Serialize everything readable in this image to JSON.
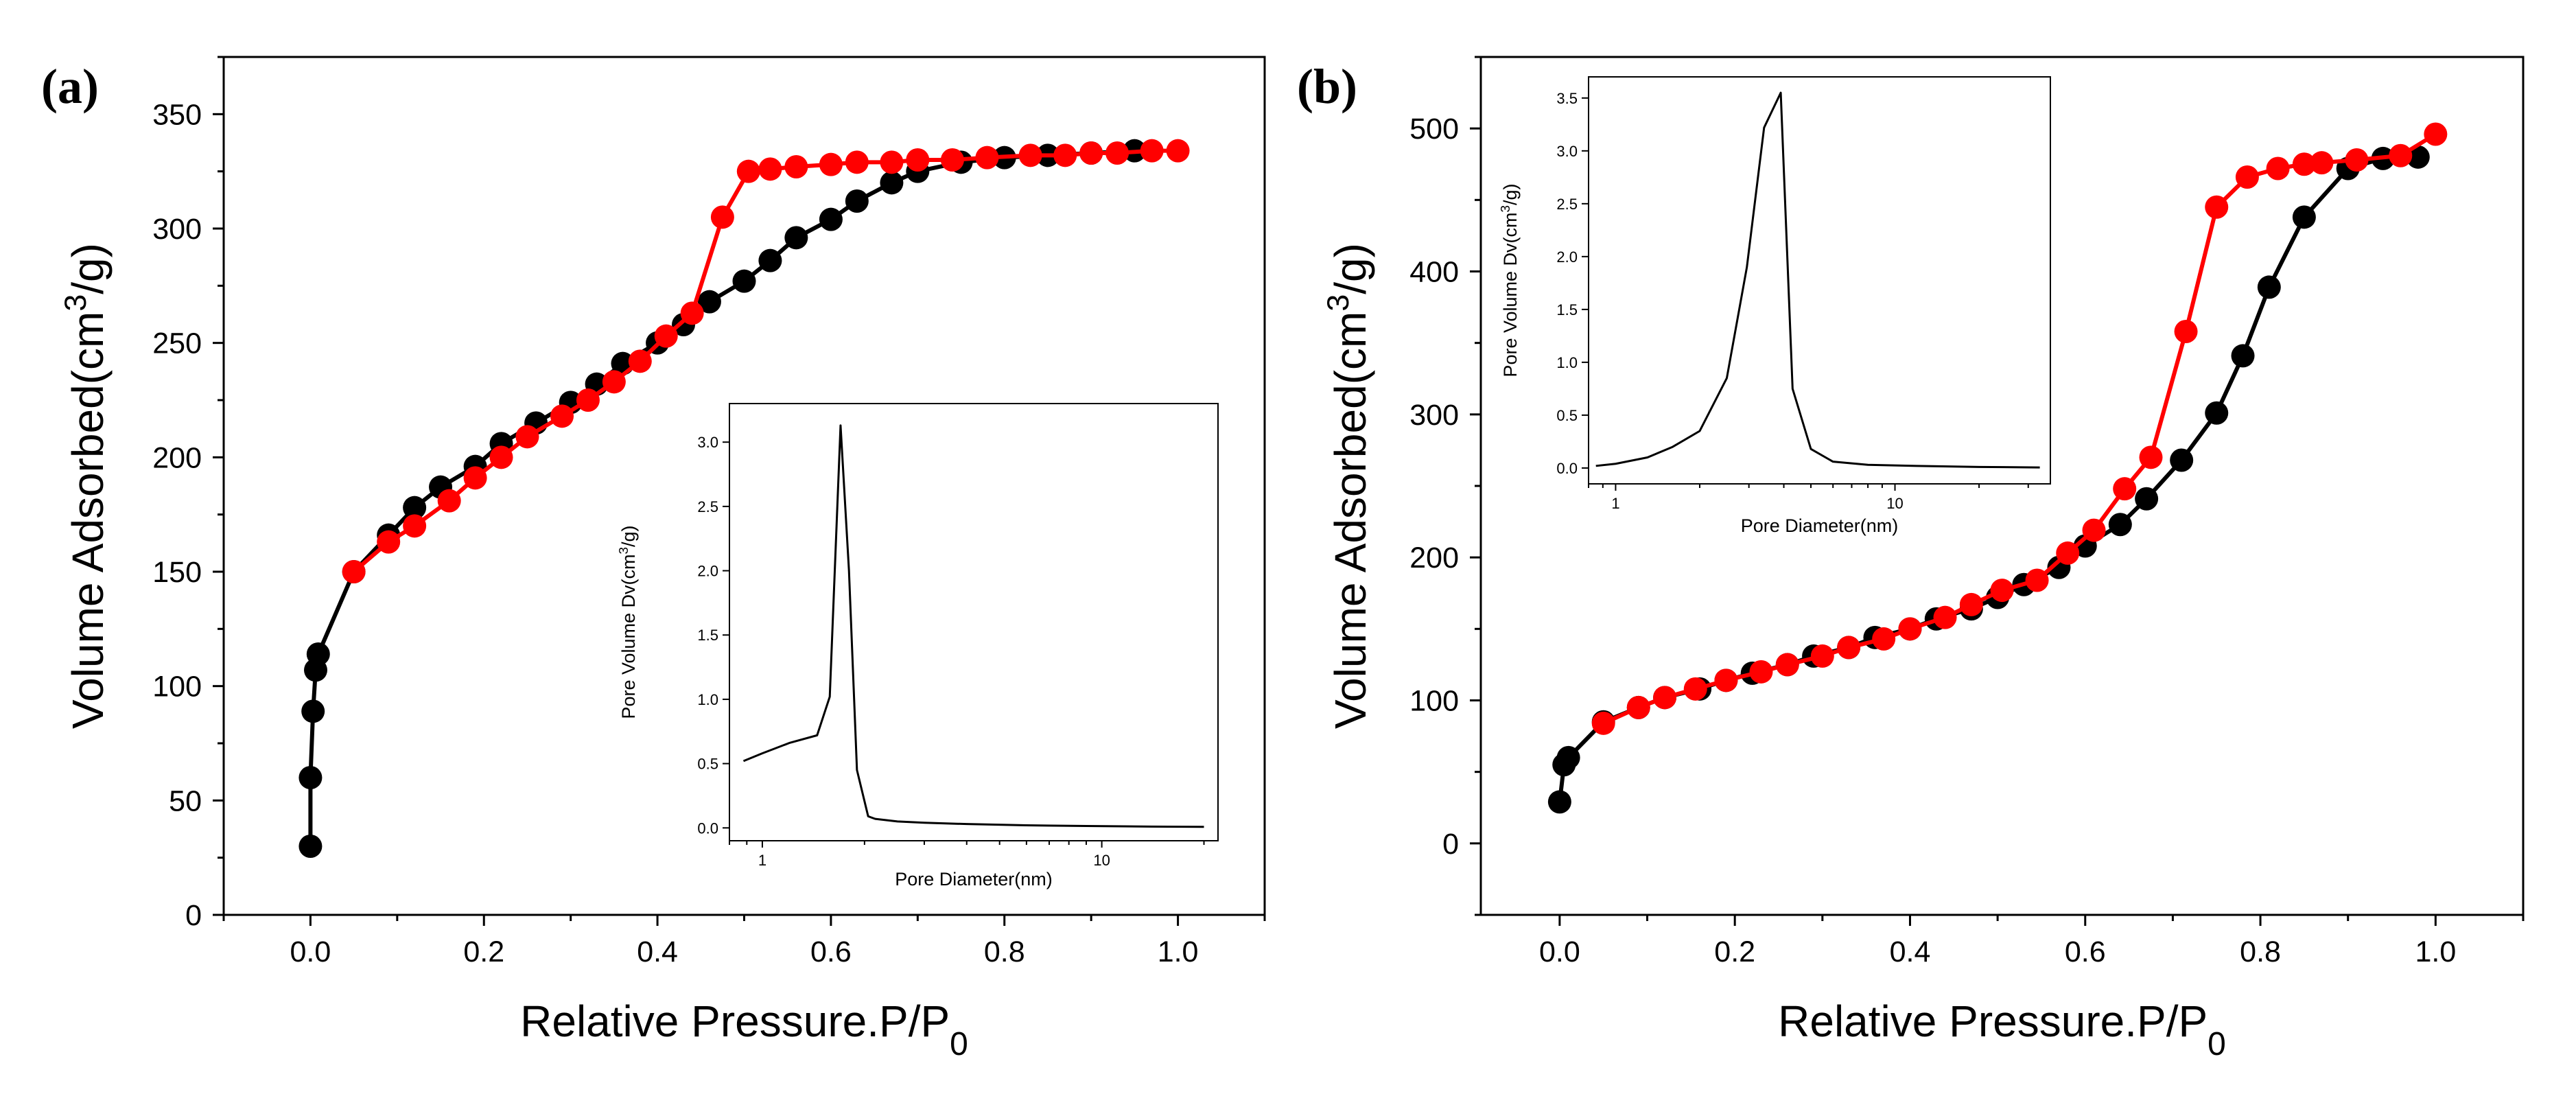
{
  "chart_data": [
    {
      "panel_label": "(a)",
      "type": "line",
      "xlabel": "Relative Pressure.P/P",
      "xlabel_sub": "0",
      "ylabel_main": "Volume Adsorbed(cm",
      "ylabel_sup": "3",
      "ylabel_tail": "/g)",
      "xlim": [
        -0.1,
        1.1
      ],
      "ylim": [
        0,
        375
      ],
      "xticks": [
        0.0,
        0.2,
        0.4,
        0.6,
        0.8,
        1.0
      ],
      "xtick_labels": [
        "0.0",
        "0.2",
        "0.4",
        "0.6",
        "0.8",
        "1.0"
      ],
      "yticks": [
        0,
        50,
        100,
        150,
        200,
        250,
        300,
        350
      ],
      "ytick_labels": [
        "0",
        "50",
        "100",
        "150",
        "200",
        "250",
        "300",
        "350"
      ],
      "series": [
        {
          "name": "adsorption",
          "color": "#000000",
          "x": [
            0.0,
            0.0,
            0.003,
            0.006,
            0.009,
            0.05,
            0.09,
            0.12,
            0.15,
            0.19,
            0.22,
            0.26,
            0.3,
            0.33,
            0.36,
            0.4,
            0.43,
            0.46,
            0.5,
            0.53,
            0.56,
            0.6,
            0.63,
            0.67,
            0.7,
            0.75,
            0.8,
            0.85,
            0.9,
            0.95
          ],
          "y": [
            30,
            60,
            89,
            107,
            114,
            150,
            166,
            178,
            187,
            196,
            206,
            215,
            224,
            232,
            241,
            250,
            258,
            268,
            277,
            286,
            296,
            304,
            312,
            320,
            325,
            329,
            331,
            332,
            333,
            334
          ]
        },
        {
          "name": "desorption",
          "color": "#ff0000",
          "x": [
            1.0,
            0.97,
            0.93,
            0.9,
            0.87,
            0.83,
            0.78,
            0.74,
            0.7,
            0.67,
            0.63,
            0.6,
            0.56,
            0.53,
            0.505,
            0.475,
            0.44,
            0.41,
            0.38,
            0.35,
            0.32,
            0.29,
            0.25,
            0.22,
            0.19,
            0.16,
            0.12,
            0.09,
            0.05
          ],
          "y": [
            334,
            334,
            333,
            333,
            332,
            332,
            331,
            330,
            330,
            329,
            329,
            328,
            327,
            326,
            325,
            305,
            263,
            253,
            242,
            233,
            225,
            218,
            209,
            200,
            191,
            181,
            170,
            163,
            150
          ]
        }
      ],
      "inset": {
        "type": "line",
        "xlabel": "Pore Diameter(nm)",
        "ylabel_main": "Pore Volume Dv(cm",
        "ylabel_sup": "3",
        "ylabel_tail": "/g)",
        "xscale": "log",
        "xlim": [
          0.8,
          22
        ],
        "ylim": [
          -0.1,
          3.3
        ],
        "xtick_labels": [
          "1",
          "10"
        ],
        "xticks": [
          1,
          10
        ],
        "yticks": [
          0.0,
          0.5,
          1.0,
          1.5,
          2.0,
          2.5,
          3.0
        ],
        "ytick_labels": [
          "0.0",
          "0.5",
          "1.0",
          "1.5",
          "2.0",
          "2.5",
          "3.0"
        ],
        "x": [
          0.88,
          1.0,
          1.2,
          1.45,
          1.58,
          1.7,
          1.8,
          1.9,
          2.05,
          2.15,
          2.5,
          3.0,
          4.0,
          6.0,
          9.0,
          14.0,
          20.0
        ],
        "y": [
          0.52,
          0.58,
          0.66,
          0.72,
          1.02,
          3.13,
          2.0,
          0.45,
          0.09,
          0.07,
          0.05,
          0.04,
          0.03,
          0.02,
          0.015,
          0.01,
          0.008
        ]
      }
    },
    {
      "panel_label": "(b)",
      "type": "line",
      "xlabel": "Relative Pressure.P/P",
      "xlabel_sub": "0",
      "ylabel_main": "Volume Adsorbed(cm",
      "ylabel_sup": "3",
      "ylabel_tail": "/g)",
      "xlim": [
        -0.09,
        1.1
      ],
      "ylim": [
        -50,
        550
      ],
      "xticks": [
        0.0,
        0.2,
        0.4,
        0.6,
        0.8,
        1.0
      ],
      "xtick_labels": [
        "0.0",
        "0.2",
        "0.4",
        "0.6",
        "0.8",
        "1.0"
      ],
      "yticks": [
        0,
        100,
        200,
        300,
        400,
        500
      ],
      "ytick_labels": [
        "0",
        "100",
        "200",
        "300",
        "400",
        "500"
      ],
      "series": [
        {
          "name": "adsorption",
          "color": "#000000",
          "x": [
            0.0,
            0.005,
            0.01,
            0.05,
            0.09,
            0.12,
            0.16,
            0.19,
            0.22,
            0.26,
            0.29,
            0.33,
            0.36,
            0.4,
            0.43,
            0.47,
            0.5,
            0.53,
            0.57,
            0.6,
            0.64,
            0.67,
            0.71,
            0.75,
            0.78,
            0.81,
            0.85,
            0.9,
            0.94,
            0.98
          ],
          "y": [
            29,
            55,
            60,
            85,
            95,
            102,
            108,
            114,
            119,
            125,
            131,
            137,
            144,
            150,
            157,
            164,
            172,
            181,
            193,
            208,
            223,
            241,
            268,
            301,
            341,
            389,
            438,
            472,
            479,
            480
          ]
        },
        {
          "name": "desorption",
          "color": "#ff0000",
          "x": [
            1.0,
            0.96,
            0.91,
            0.87,
            0.85,
            0.82,
            0.785,
            0.75,
            0.715,
            0.675,
            0.645,
            0.61,
            0.58,
            0.545,
            0.505,
            0.47,
            0.44,
            0.4,
            0.37,
            0.33,
            0.3,
            0.26,
            0.23,
            0.19,
            0.155,
            0.12,
            0.09,
            0.05
          ],
          "y": [
            496,
            481,
            478,
            476,
            475,
            472,
            466,
            445,
            358,
            270,
            248,
            219,
            203,
            184,
            177,
            167,
            158,
            150,
            143,
            137,
            131,
            125,
            120,
            114,
            108,
            102,
            95,
            84
          ]
        }
      ],
      "inset": {
        "type": "line",
        "xlabel": "Pore Diameter(nm)",
        "ylabel_main": "Pore Volume Dv(cm",
        "ylabel_sup": "3",
        "ylabel_tail": "/g)",
        "xscale": "log",
        "xlim": [
          0.8,
          36
        ],
        "ylim": [
          -0.15,
          3.7
        ],
        "xtick_labels": [
          "1",
          "10"
        ],
        "xticks": [
          1,
          10
        ],
        "yticks": [
          0.0,
          0.5,
          1.0,
          1.5,
          2.0,
          2.5,
          3.0,
          3.5
        ],
        "ytick_labels": [
          "0.0",
          "0.5",
          "1.0",
          "1.5",
          "2.0",
          "2.5",
          "3.0",
          "3.5"
        ],
        "x": [
          0.85,
          1.0,
          1.3,
          1.6,
          2.0,
          2.5,
          2.95,
          3.4,
          3.9,
          4.3,
          5.0,
          6.0,
          8.0,
          12.0,
          20.0,
          33.0
        ],
        "y": [
          0.02,
          0.04,
          0.1,
          0.2,
          0.35,
          0.85,
          1.9,
          3.22,
          3.55,
          0.75,
          0.18,
          0.06,
          0.03,
          0.02,
          0.01,
          0.005
        ]
      }
    }
  ]
}
